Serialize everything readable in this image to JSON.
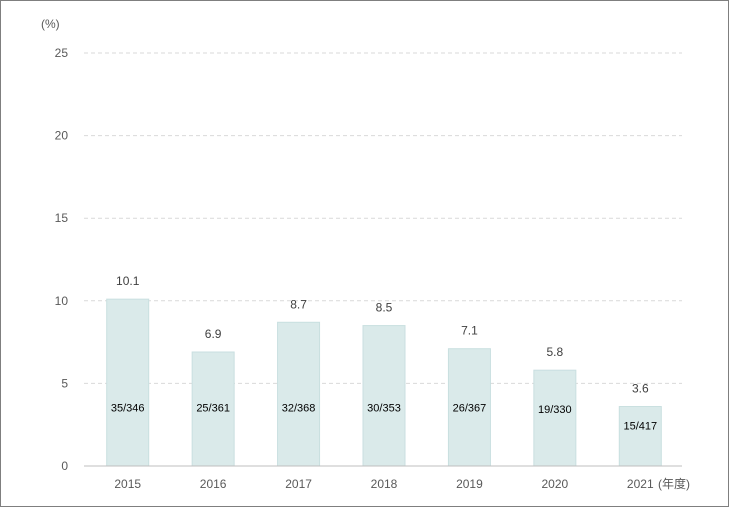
{
  "chart_data": {
    "type": "bar",
    "title": "",
    "ylabel": "(%)",
    "xlabel": "(年度)",
    "ylim": [
      0,
      25
    ],
    "yticks": [
      0,
      5,
      10,
      15,
      20,
      25
    ],
    "grid": true,
    "categories": [
      "2015",
      "2016",
      "2017",
      "2018",
      "2019",
      "2020",
      "2021"
    ],
    "values": [
      10.1,
      6.9,
      8.7,
      8.5,
      7.1,
      5.8,
      3.6
    ],
    "value_labels": [
      "10.1",
      "6.9",
      "8.7",
      "8.5",
      "7.1",
      "5.8",
      "3.6"
    ],
    "inner_labels": [
      "35/346",
      "25/361",
      "32/368",
      "30/353",
      "26/367",
      "19/330",
      "15/417"
    ],
    "bar_color": "#daeaea",
    "bar_edge_color": "#c9dfe0"
  }
}
